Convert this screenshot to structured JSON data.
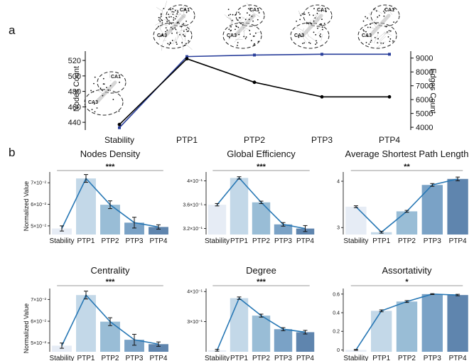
{
  "panel_a": {
    "letter": "a",
    "left_axis_label": "Nodes Count",
    "right_axis_label": "Edges Count",
    "brain_labels": [
      "CA1",
      "CA3"
    ],
    "colors": {
      "nodes": "#2a3f9b",
      "edges": "#000000"
    }
  },
  "panel_b": {
    "letter": "b",
    "ylabel": "Normalized Value",
    "bar_colors": [
      "#e6ecf5",
      "#c3d8e8",
      "#99bdd6",
      "#7aa2c6",
      "#5f85ae"
    ],
    "line_color": "#2878b5"
  },
  "chart_data": [
    {
      "type": "line",
      "title": "",
      "categories": [
        "Stability",
        "PTP1",
        "PTP2",
        "PTP3",
        "PTP4"
      ],
      "series": [
        {
          "name": "Nodes Count",
          "axis": "left",
          "values": [
            433,
            525,
            527,
            528,
            528
          ]
        },
        {
          "name": "Edges Count",
          "axis": "right",
          "values": [
            4200,
            8950,
            7250,
            6200,
            6200
          ]
        }
      ],
      "yticks_left": [
        "440",
        "460",
        "480",
        "500",
        "520"
      ],
      "yticks_right": [
        "4000",
        "5000",
        "6000",
        "7000",
        "8000",
        "9000"
      ],
      "ylim_left": [
        430,
        532
      ],
      "ylim_right": [
        3800,
        9500
      ]
    },
    {
      "type": "bar",
      "title": "Nodes Density",
      "sig": "***",
      "categories": [
        "Stability",
        "PTP1",
        "PTP2",
        "PTP3",
        "PTP4"
      ],
      "values": [
        0.0488,
        0.072,
        0.0598,
        0.0515,
        0.0495
      ],
      "errors": [
        0.0012,
        0.0018,
        0.0018,
        0.0025,
        0.001
      ],
      "ylim": [
        0.046,
        0.075
      ],
      "ytick_values": [
        0.05,
        0.06,
        0.07
      ],
      "ytick_labels": [
        "5×10⁻²",
        "6×10⁻²",
        "7×10⁻²"
      ]
    },
    {
      "type": "bar",
      "title": "Global Efficiency",
      "sig": "***",
      "categories": [
        "Stability",
        "PTP1",
        "PTP2",
        "PTP3",
        "PTP4"
      ],
      "values": [
        0.36,
        0.405,
        0.364,
        0.327,
        0.32
      ],
      "errors": [
        0.002,
        0.002,
        0.002,
        0.003,
        0.005
      ],
      "ylim": [
        0.31,
        0.415
      ],
      "ytick_values": [
        0.32,
        0.36,
        0.4
      ],
      "ytick_labels": [
        "3.2×10⁻¹",
        "3.6×10⁻¹",
        "4×10⁻¹"
      ]
    },
    {
      "type": "bar",
      "title": "Average Shortest Path Length",
      "sig": "**",
      "categories": [
        "Stability",
        "PTP1",
        "PTP2",
        "PTP3",
        "PTP4"
      ],
      "values": [
        3.45,
        2.9,
        3.35,
        3.92,
        4.05
      ],
      "errors": [
        0.02,
        0.02,
        0.02,
        0.03,
        0.04
      ],
      "ylim": [
        2.85,
        4.2
      ],
      "ytick_values": [
        3,
        4
      ],
      "ytick_labels": [
        "3",
        "4"
      ]
    },
    {
      "type": "bar",
      "title": "Centrality",
      "sig": "***",
      "categories": [
        "Stability",
        "PTP1",
        "PTP2",
        "PTP3",
        "PTP4"
      ],
      "values": [
        0.0488,
        0.072,
        0.0598,
        0.0515,
        0.0495
      ],
      "errors": [
        0.0012,
        0.0018,
        0.0018,
        0.0025,
        0.001
      ],
      "ylim": [
        0.046,
        0.075
      ],
      "ytick_values": [
        0.05,
        0.06,
        0.07
      ],
      "ytick_labels": [
        "5×10⁻²",
        "6×10⁻²",
        "7×10⁻²"
      ]
    },
    {
      "type": "bar",
      "title": "Degree",
      "sig": "***",
      "categories": [
        "Stability",
        "PTP1",
        "PTP2",
        "PTP3",
        "PTP4"
      ],
      "values": [
        0.205,
        0.378,
        0.32,
        0.275,
        0.265
      ],
      "errors": [
        0.003,
        0.004,
        0.005,
        0.005,
        0.006
      ],
      "ylim": [
        0.2,
        0.41
      ],
      "ytick_values": [
        0.3,
        0.4
      ],
      "ytick_labels": [
        "3×10⁻¹",
        "4×10⁻¹"
      ]
    },
    {
      "type": "bar",
      "title": "Assortativity",
      "sig": "*",
      "categories": [
        "Stability",
        "PTP1",
        "PTP2",
        "PTP3",
        "PTP4"
      ],
      "values": [
        0.0,
        0.42,
        0.52,
        0.6,
        0.59
      ],
      "errors": [
        0.005,
        0.01,
        0.01,
        0.005,
        0.008
      ],
      "ylim": [
        -0.02,
        0.66
      ],
      "ytick_values": [
        0,
        0.2,
        0.4,
        0.6
      ],
      "ytick_labels": [
        "0",
        "0.2",
        "0.4",
        "0.6"
      ]
    }
  ]
}
